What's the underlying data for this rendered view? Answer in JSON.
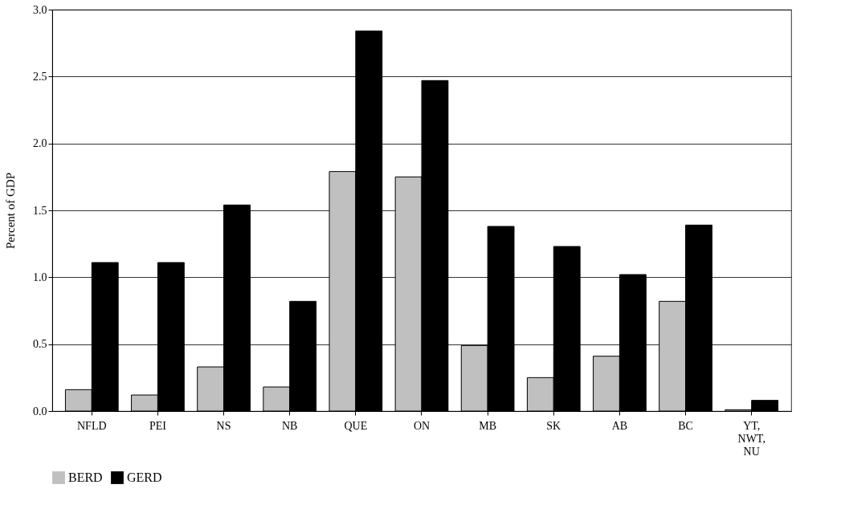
{
  "chart_data": {
    "type": "bar",
    "ylabel": "Percent of GDP",
    "categories": [
      "NFLD",
      "PEI",
      "NS",
      "NB",
      "QUE",
      "ON",
      "MB",
      "SK",
      "AB",
      "BC",
      "YT, NWT, NU"
    ],
    "series": [
      {
        "name": "BERD",
        "color": "#c0c0c0",
        "values": [
          0.16,
          0.12,
          0.33,
          0.18,
          1.79,
          1.75,
          0.49,
          0.25,
          0.41,
          0.82,
          0.01
        ]
      },
      {
        "name": "GERD",
        "color": "#000000",
        "values": [
          1.11,
          1.11,
          1.54,
          0.82,
          2.84,
          2.47,
          1.38,
          1.23,
          1.02,
          1.39,
          0.08
        ]
      }
    ],
    "ylim": [
      0,
      3.0
    ],
    "yticks": [
      {
        "value": 0,
        "label": "0.0"
      },
      {
        "value": 0.5,
        "label": "0.5"
      },
      {
        "value": 1,
        "label": "1.0"
      },
      {
        "value": 1.5,
        "label": "1.5"
      },
      {
        "value": 2,
        "label": "2.0"
      },
      {
        "value": 2.5,
        "label": "2.5"
      },
      {
        "value": 3,
        "label": "3.0"
      }
    ],
    "grid": "y",
    "legend": "bottom"
  }
}
